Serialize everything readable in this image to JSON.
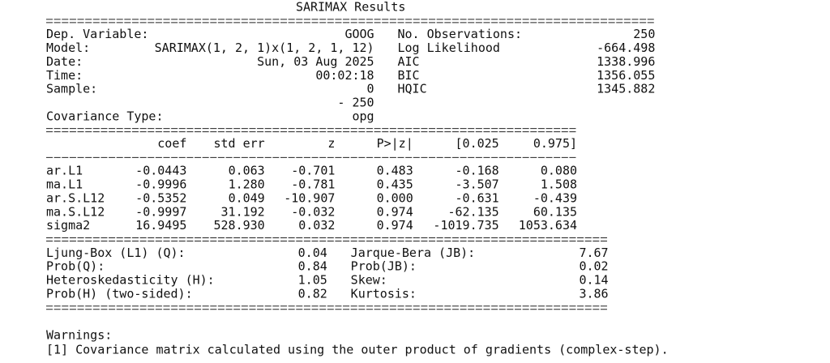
{
  "title": "SARIMAX Results",
  "header": {
    "rows": [
      [
        "Dep. Variable:",
        "GOOG",
        "No. Observations:",
        "250"
      ],
      [
        "Model:",
        "SARIMAX(1, 2, 1)x(1, 2, 1, 12)",
        "Log Likelihood",
        "-664.498"
      ],
      [
        "Date:",
        "Sun, 03 Aug 2025",
        "AIC",
        "1338.996"
      ],
      [
        "Time:",
        "00:02:18",
        "BIC",
        "1356.055"
      ],
      [
        "Sample:",
        "0",
        "HQIC",
        "1345.882"
      ]
    ],
    "sample_end": "- 250",
    "covariance_label": "Covariance Type:",
    "covariance_type": "opg"
  },
  "coef_table": {
    "columns": [
      "coef",
      "std err",
      "z",
      "P>|z|",
      "[0.025",
      "0.975]"
    ],
    "rows": [
      [
        "ar.L1",
        "-0.0443",
        "0.063",
        "-0.701",
        "0.483",
        "-0.168",
        "0.080"
      ],
      [
        "ma.L1",
        "-0.9996",
        "1.280",
        "-0.781",
        "0.435",
        "-3.507",
        "1.508"
      ],
      [
        "ar.S.L12",
        "-0.5352",
        "0.049",
        "-10.907",
        "0.000",
        "-0.631",
        "-0.439"
      ],
      [
        "ma.S.L12",
        "-0.9997",
        "31.192",
        "-0.032",
        "0.974",
        "-62.135",
        "60.135"
      ],
      [
        "sigma2",
        "16.9495",
        "528.930",
        "0.032",
        "0.974",
        "-1019.735",
        "1053.634"
      ]
    ]
  },
  "diagnostics": {
    "rows": [
      [
        "Ljung-Box (L1) (Q):",
        "0.04",
        "Jarque-Bera (JB):",
        "7.67"
      ],
      [
        "Prob(Q):",
        "0.84",
        "Prob(JB):",
        "0.02"
      ],
      [
        "Heteroskedasticity (H):",
        "1.05",
        "Skew:",
        "0.14"
      ],
      [
        "Prob(H) (two-sided):",
        "0.82",
        "Kurtosis:",
        "3.86"
      ]
    ]
  },
  "warnings": {
    "title": "Warnings:",
    "items": [
      "[1] Covariance matrix calculated using the outer product of gradients (complex-step)."
    ]
  }
}
